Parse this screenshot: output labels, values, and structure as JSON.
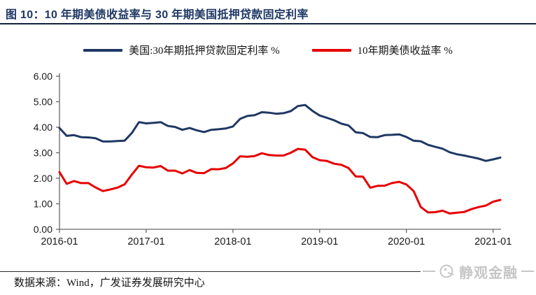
{
  "header": {
    "title": "图 10：10 年期美债收益率与 30 年期美国抵押贷款固定利率"
  },
  "footer": {
    "source": "数据来源：Wind，广发证券发展研究中心",
    "watermark": "静观金融"
  },
  "colors": {
    "navy": "#1f3864",
    "red": "#e60000",
    "title_rule": "#14213d",
    "footer_rule": "#2b2b2b",
    "axis": "#666666",
    "tick_text": "#1a1a1a",
    "watermark": "#c6c6c6"
  },
  "chart_data": {
    "type": "line",
    "title": "10 年期美债收益率与 30 年期美国抵押贷款固定利率",
    "x": [
      "2016-01",
      "2016-02",
      "2016-03",
      "2016-04",
      "2016-05",
      "2016-06",
      "2016-07",
      "2016-08",
      "2016-09",
      "2016-10",
      "2016-11",
      "2016-12",
      "2017-01",
      "2017-02",
      "2017-03",
      "2017-04",
      "2017-05",
      "2017-06",
      "2017-07",
      "2017-08",
      "2017-09",
      "2017-10",
      "2017-11",
      "2017-12",
      "2018-01",
      "2018-02",
      "2018-03",
      "2018-04",
      "2018-05",
      "2018-06",
      "2018-07",
      "2018-08",
      "2018-09",
      "2018-10",
      "2018-11",
      "2018-12",
      "2019-01",
      "2019-02",
      "2019-03",
      "2019-04",
      "2019-05",
      "2019-06",
      "2019-07",
      "2019-08",
      "2019-09",
      "2019-10",
      "2019-11",
      "2019-12",
      "2020-01",
      "2020-02",
      "2020-03",
      "2020-04",
      "2020-05",
      "2020-06",
      "2020-07",
      "2020-08",
      "2020-09",
      "2020-10",
      "2020-11",
      "2020-12",
      "2021-01",
      "2021-02"
    ],
    "series": [
      {
        "name": "美国:30年期抵押贷款固定利率 %",
        "color": "#1f3864",
        "values": [
          3.97,
          3.66,
          3.69,
          3.61,
          3.6,
          3.57,
          3.44,
          3.44,
          3.46,
          3.47,
          3.77,
          4.2,
          4.15,
          4.17,
          4.2,
          4.05,
          4.01,
          3.9,
          3.97,
          3.88,
          3.81,
          3.9,
          3.92,
          3.95,
          4.03,
          4.33,
          4.44,
          4.47,
          4.59,
          4.57,
          4.53,
          4.55,
          4.63,
          4.83,
          4.87,
          4.64,
          4.46,
          4.37,
          4.27,
          4.14,
          4.07,
          3.8,
          3.77,
          3.62,
          3.61,
          3.69,
          3.7,
          3.72,
          3.62,
          3.47,
          3.45,
          3.31,
          3.23,
          3.16,
          3.02,
          2.94,
          2.89,
          2.83,
          2.77,
          2.68,
          2.74,
          2.81
        ]
      },
      {
        "name": "10年期美债收益率 %",
        "color": "#e60000",
        "values": [
          2.24,
          1.78,
          1.89,
          1.81,
          1.81,
          1.64,
          1.5,
          1.56,
          1.63,
          1.76,
          2.14,
          2.49,
          2.43,
          2.42,
          2.48,
          2.3,
          2.3,
          2.19,
          2.32,
          2.21,
          2.2,
          2.36,
          2.35,
          2.4,
          2.58,
          2.86,
          2.84,
          2.87,
          2.98,
          2.91,
          2.89,
          2.89,
          3.0,
          3.15,
          3.12,
          2.83,
          2.71,
          2.68,
          2.57,
          2.53,
          2.4,
          2.07,
          2.06,
          1.63,
          1.7,
          1.71,
          1.81,
          1.86,
          1.76,
          1.5,
          0.87,
          0.66,
          0.67,
          0.73,
          0.62,
          0.65,
          0.68,
          0.79,
          0.87,
          0.93,
          1.08,
          1.15
        ]
      }
    ],
    "ylim": [
      0,
      6
    ],
    "yticks": [
      0,
      1,
      2,
      3,
      4,
      5,
      6
    ],
    "ytick_labels": [
      "0.00",
      "1.00",
      "2.00",
      "3.00",
      "4.00",
      "5.00",
      "6.00"
    ],
    "xtick_labels": [
      "2016-01",
      "2017-01",
      "2018-01",
      "2019-01",
      "2020-01",
      "2021-01"
    ],
    "grid": false,
    "legend_position": "top",
    "xlabel": "",
    "ylabel": ""
  }
}
